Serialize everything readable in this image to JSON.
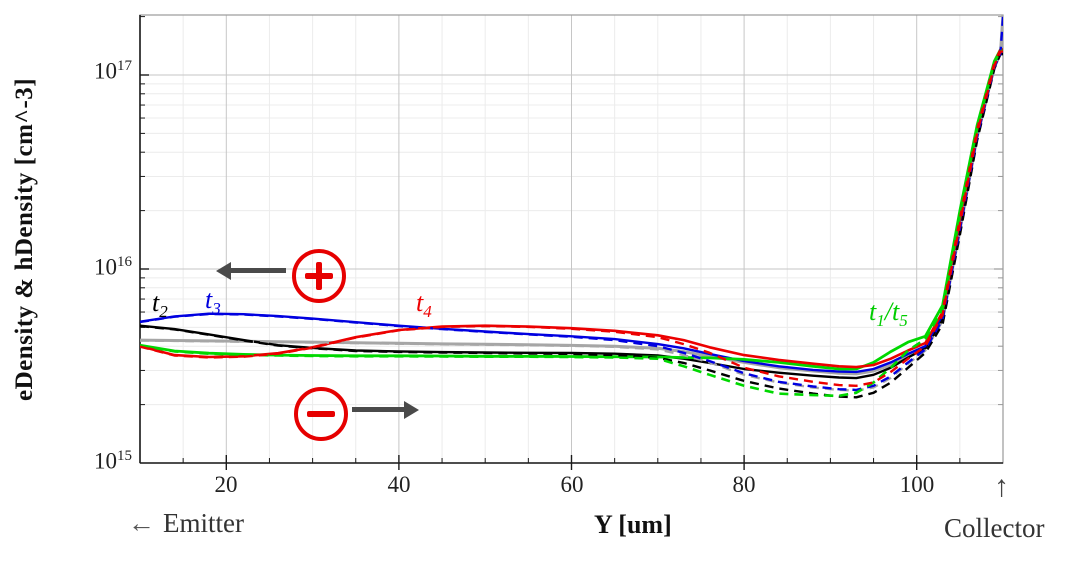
{
  "axes": {
    "y_label": "eDensity & hDensity [cm^-3]",
    "x_label": "Y [um]",
    "y_ticks": [
      {
        "base": "10",
        "exp": "17"
      },
      {
        "base": "10",
        "exp": "16"
      },
      {
        "base": "10",
        "exp": "15"
      }
    ],
    "x_ticks": [
      "20",
      "40",
      "60",
      "80",
      "100"
    ]
  },
  "annotations": {
    "t2": {
      "main": "t",
      "sub": "2",
      "color": "#000000"
    },
    "t3": {
      "main": "t",
      "sub": "3",
      "color": "#0000dd"
    },
    "t4": {
      "main": "t",
      "sub": "4",
      "color": "#ee0000"
    },
    "t1t5": {
      "main1": "t",
      "sub1": "1",
      "slash": "/",
      "main2": "t",
      "sub2": "5",
      "color": "#00cc00"
    },
    "emitter": {
      "arrow": "←",
      "label": "Emitter"
    },
    "collector": {
      "arrow": "↑",
      "label": "Collector"
    }
  },
  "icons": {
    "plus_circle": "plus-in-circle (red ring, red + glyph)",
    "minus_circle": "minus-in-circle (red ring, red − glyph)",
    "left_arrow": "thick gray arrow pointing left toward emitter",
    "right_arrow": "thick gray arrow pointing right toward collector"
  },
  "colors": {
    "t2": "#000000",
    "t3": "#0000e0",
    "t4": "#ec0000",
    "t1t5": "#00d800",
    "gray_series": "#a6a6a6",
    "symbol_red": "#e60000",
    "arrow_gray": "#4a4a4a",
    "grid_minor": "#ececec",
    "grid_major": "#c6c6c6",
    "frame": "#999999",
    "axis": "#1a1a1a"
  },
  "chart_data": {
    "type": "line",
    "title": "",
    "xlabel": "Y [um]",
    "ylabel": "eDensity & hDensity [cm^-3]",
    "x_axis": {
      "min": 10,
      "max": 110,
      "major_ticks": [
        20,
        40,
        60,
        80,
        100
      ],
      "minor_step": 5
    },
    "y_axis": {
      "scale": "log",
      "min": 1000000000000000.0,
      "max": 2.1e+17,
      "decade_ticks": [
        1000000000000000.0,
        1e+16,
        1e+17
      ]
    },
    "legend_position": "none",
    "grid": "major+minor",
    "unit": "values_1e15 are carrier densities in units of 1e15 cm^-3; solid = eDensity, dashed = hDensity",
    "x": [
      10,
      14,
      18,
      22,
      26,
      30,
      35,
      40,
      45,
      50,
      55,
      60,
      65,
      70,
      73,
      76,
      80,
      84,
      88,
      91,
      93,
      95,
      97,
      99,
      101,
      103,
      105,
      107,
      109,
      109.7,
      110
    ],
    "series": [
      {
        "name": "gray-reference-eDensity",
        "color": "#a6a6a6",
        "style": "solid",
        "width": 3,
        "values_1e15": [
          4.3,
          4.28,
          4.26,
          4.24,
          4.22,
          4.2,
          4.17,
          4.14,
          4.11,
          4.09,
          4.07,
          4.04,
          4.0,
          3.9,
          3.75,
          3.55,
          3.3,
          3.1,
          2.98,
          2.9,
          2.88,
          2.98,
          3.2,
          3.6,
          3.95,
          5.7,
          16.5,
          49,
          111,
          129,
          205
        ]
      },
      {
        "name": "t2-eDensity",
        "color": "#000000",
        "style": "solid",
        "width": 2.4,
        "values_1e15": [
          5.1,
          4.9,
          4.6,
          4.3,
          4.05,
          3.92,
          3.8,
          3.76,
          3.73,
          3.71,
          3.7,
          3.69,
          3.66,
          3.58,
          3.45,
          3.28,
          3.05,
          2.92,
          2.82,
          2.76,
          2.74,
          2.85,
          3.1,
          3.5,
          3.9,
          5.5,
          16,
          48,
          110,
          130,
          130
        ]
      },
      {
        "name": "t3-eDensity",
        "color": "#0000e0",
        "style": "solid",
        "width": 2.4,
        "values_1e15": [
          5.35,
          5.7,
          5.88,
          5.85,
          5.72,
          5.55,
          5.32,
          5.1,
          4.92,
          4.76,
          4.62,
          4.5,
          4.35,
          4.1,
          3.9,
          3.65,
          3.35,
          3.15,
          3.02,
          2.96,
          2.95,
          3.05,
          3.3,
          3.65,
          4.0,
          5.8,
          17,
          50,
          112,
          130,
          130
        ]
      },
      {
        "name": "t1t5-eDensity",
        "color": "#00d800",
        "style": "solid",
        "width": 2.8,
        "values_1e15": [
          4.05,
          3.78,
          3.68,
          3.63,
          3.6,
          3.58,
          3.57,
          3.57,
          3.56,
          3.55,
          3.55,
          3.54,
          3.53,
          3.52,
          3.5,
          3.48,
          3.42,
          3.3,
          3.15,
          3.05,
          3.05,
          3.3,
          3.75,
          4.2,
          4.5,
          6.5,
          20,
          55,
          118,
          135,
          135
        ]
      },
      {
        "name": "t4-eDensity",
        "color": "#ec0000",
        "style": "solid",
        "width": 2.6,
        "values_1e15": [
          4.0,
          3.6,
          3.52,
          3.55,
          3.68,
          3.95,
          4.45,
          4.85,
          5.05,
          5.1,
          5.05,
          4.95,
          4.8,
          4.55,
          4.3,
          3.95,
          3.6,
          3.4,
          3.25,
          3.15,
          3.12,
          3.2,
          3.45,
          3.8,
          4.15,
          6.0,
          18,
          52,
          115,
          135,
          135
        ]
      },
      {
        "name": "gray-reference-hDensity",
        "color": "#a6a6a6",
        "style": "dashed",
        "width": 2.4,
        "values_1e15": [
          4.28,
          4.26,
          4.24,
          4.22,
          4.2,
          4.18,
          4.15,
          4.12,
          4.09,
          4.07,
          4.05,
          4.02,
          3.97,
          3.85,
          3.6,
          3.3,
          2.85,
          2.6,
          2.45,
          2.38,
          2.36,
          2.45,
          2.75,
          3.25,
          3.8,
          5.4,
          15.5,
          47,
          109,
          127,
          200
        ]
      },
      {
        "name": "t2-hDensity",
        "color": "#000000",
        "style": "dashed",
        "width": 2.4,
        "values_1e15": [
          5.08,
          4.88,
          4.58,
          4.28,
          4.03,
          3.9,
          3.78,
          3.74,
          3.71,
          3.69,
          3.67,
          3.65,
          3.6,
          3.48,
          3.28,
          3.0,
          2.65,
          2.42,
          2.28,
          2.2,
          2.18,
          2.3,
          2.6,
          3.1,
          3.7,
          5.2,
          15,
          46,
          108,
          128,
          128
        ]
      },
      {
        "name": "t3-hDensity",
        "color": "#0000e0",
        "style": "dashed",
        "width": 2.4,
        "values_1e15": [
          5.33,
          5.68,
          5.86,
          5.83,
          5.7,
          5.53,
          5.3,
          5.08,
          4.9,
          4.74,
          4.6,
          4.47,
          4.3,
          4.0,
          3.7,
          3.35,
          2.9,
          2.62,
          2.48,
          2.4,
          2.38,
          2.5,
          2.8,
          3.3,
          3.85,
          5.5,
          16,
          48,
          110,
          128,
          200
        ]
      },
      {
        "name": "t1t5-hDensity",
        "color": "#00d800",
        "style": "dashed",
        "width": 2.6,
        "values_1e15": [
          4.03,
          3.76,
          3.66,
          3.61,
          3.58,
          3.56,
          3.55,
          3.55,
          3.54,
          3.53,
          3.53,
          3.52,
          3.5,
          3.45,
          3.15,
          2.85,
          2.5,
          2.28,
          2.24,
          2.22,
          2.3,
          2.6,
          3.1,
          3.8,
          4.35,
          6.2,
          19,
          53,
          116,
          133,
          133
        ]
      },
      {
        "name": "t4-hDensity",
        "color": "#ec0000",
        "style": "dashed",
        "width": 2.4,
        "values_1e15": [
          3.98,
          3.58,
          3.5,
          3.53,
          3.66,
          3.93,
          4.43,
          4.83,
          5.03,
          5.08,
          5.03,
          4.92,
          4.75,
          4.45,
          4.1,
          3.7,
          3.1,
          2.8,
          2.62,
          2.52,
          2.5,
          2.6,
          2.95,
          3.45,
          4.0,
          5.8,
          17,
          50,
          112,
          132,
          132
        ]
      }
    ]
  }
}
